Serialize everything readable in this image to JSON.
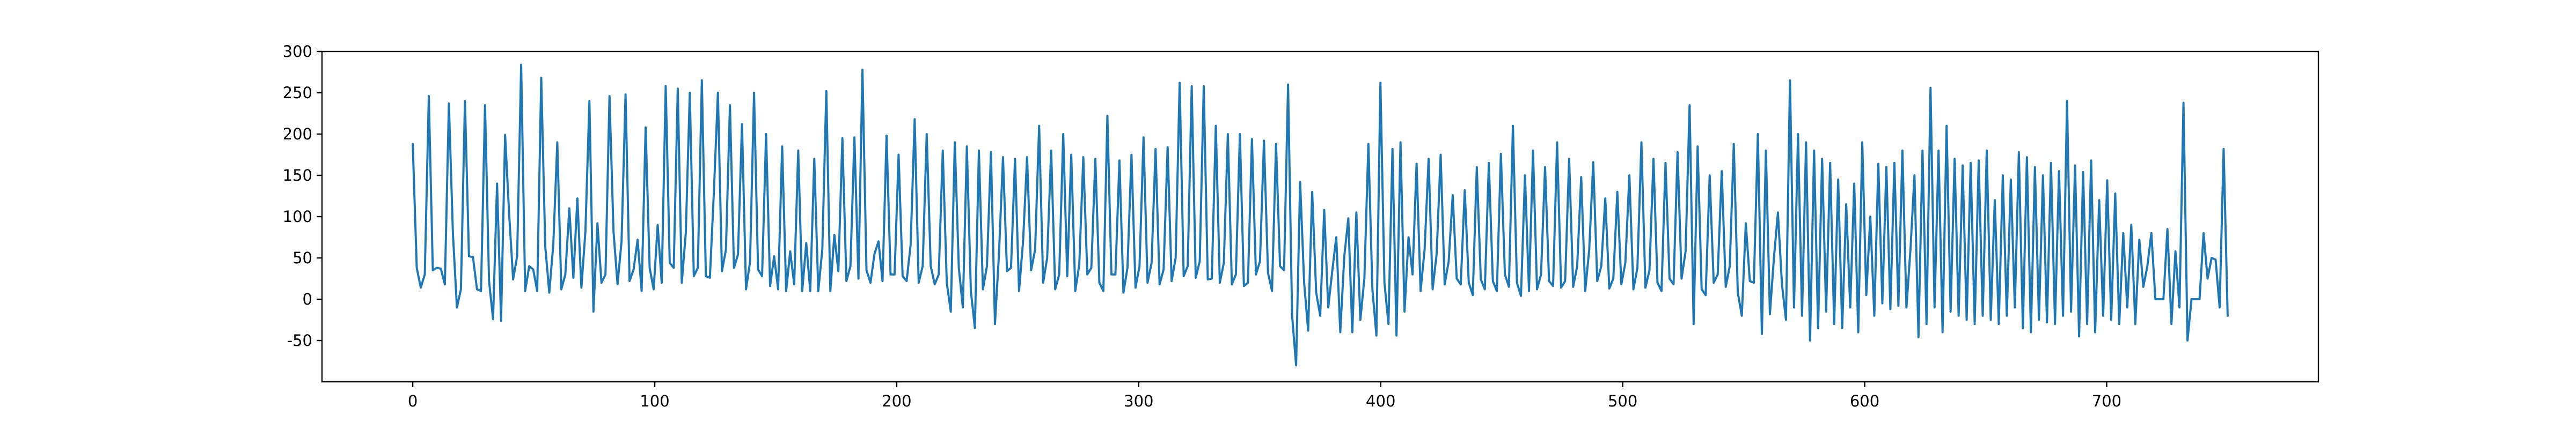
{
  "chart_data": {
    "type": "line",
    "title": "",
    "xlabel": "",
    "ylabel": "",
    "xlim": [
      -37.5,
      787.5
    ],
    "ylim": [
      -100,
      300
    ],
    "xticks": [
      0,
      100,
      200,
      300,
      400,
      500,
      600,
      700
    ],
    "yticks": [
      -50,
      0,
      50,
      100,
      150,
      200,
      250,
      300
    ],
    "grid": false,
    "legend": "none",
    "colors": {
      "line": "#1f77b4",
      "axes": "#000000",
      "background": "#ffffff"
    },
    "series": [
      {
        "values": [
          188,
          38,
          14,
          30,
          246,
          35,
          38,
          37,
          18,
          237,
          80,
          -10,
          12,
          240,
          52,
          51,
          12,
          10,
          235,
          22,
          -24,
          140,
          -26,
          199,
          104,
          24,
          52,
          284,
          10,
          40,
          36,
          10,
          268,
          64,
          8,
          66,
          190,
          12,
          30,
          110,
          26,
          122,
          14,
          82,
          240,
          -15,
          92,
          20,
          30,
          246,
          82,
          18,
          70,
          248,
          22,
          36,
          72,
          10,
          208,
          38,
          12,
          90,
          20,
          258,
          44,
          38,
          255,
          20,
          80,
          250,
          28,
          38,
          265,
          28,
          26,
          130,
          250,
          34,
          60,
          235,
          38,
          54,
          212,
          12,
          45,
          250,
          36,
          28,
          200,
          16,
          52,
          12,
          185,
          10,
          58,
          18,
          180,
          10,
          68,
          10,
          170,
          10,
          60,
          252,
          10,
          78,
          34,
          195,
          22,
          40,
          196,
          25,
          278,
          35,
          20,
          55,
          70,
          22,
          198,
          30,
          30,
          175,
          28,
          22,
          66,
          218,
          20,
          40,
          200,
          40,
          18,
          30,
          180,
          20,
          -15,
          190,
          38,
          -10,
          185,
          10,
          -35,
          180,
          12,
          40,
          178,
          -30,
          55,
          172,
          34,
          38,
          170,
          10,
          70,
          172,
          35,
          60,
          210,
          20,
          50,
          180,
          12,
          30,
          200,
          28,
          175,
          10,
          42,
          172,
          30,
          38,
          170,
          20,
          10,
          222,
          30,
          30,
          168,
          8,
          38,
          175,
          14,
          40,
          196,
          20,
          44,
          182,
          18,
          36,
          184,
          22,
          50,
          262,
          28,
          40,
          258,
          26,
          46,
          258,
          24,
          25,
          210,
          20,
          44,
          200,
          18,
          30,
          200,
          16,
          20,
          194,
          30,
          46,
          192,
          32,
          10,
          188,
          40,
          35,
          260,
          -20,
          -80,
          142,
          20,
          -38,
          130,
          8,
          -20,
          108,
          -10,
          34,
          75,
          -40,
          52,
          98,
          -40,
          105,
          -25,
          25,
          188,
          12,
          -44,
          262,
          20,
          -30,
          182,
          -44,
          190,
          -15,
          75,
          30,
          164,
          10,
          60,
          170,
          12,
          55,
          175,
          18,
          46,
          126,
          25,
          18,
          132,
          20,
          5,
          160,
          24,
          12,
          165,
          22,
          10,
          176,
          30,
          15,
          210,
          20,
          4,
          150,
          10,
          180,
          12,
          30,
          160,
          22,
          16,
          190,
          14,
          22,
          170,
          15,
          40,
          148,
          10,
          60,
          166,
          22,
          40,
          122,
          13,
          25,
          130,
          18,
          44,
          150,
          12,
          38,
          190,
          14,
          35,
          170,
          20,
          10,
          165,
          25,
          18,
          178,
          25,
          58,
          235,
          -30,
          185,
          12,
          5,
          150,
          20,
          30,
          155,
          15,
          40,
          188,
          8,
          -20,
          92,
          22,
          20,
          200,
          -42,
          180,
          -18,
          50,
          105,
          18,
          -25,
          265,
          -10,
          200,
          -20,
          190,
          -50,
          180,
          -35,
          170,
          -15,
          165,
          -30,
          145,
          -35,
          115,
          -10,
          140,
          -40,
          190,
          5,
          100,
          -20,
          164,
          -5,
          160,
          -12,
          165,
          -8,
          180,
          -10,
          60,
          150,
          -46,
          180,
          -30,
          256,
          -10,
          180,
          -40,
          210,
          -15,
          170,
          -20,
          162,
          -25,
          165,
          -30,
          168,
          -20,
          180,
          -25,
          120,
          -30,
          150,
          -20,
          145,
          -10,
          178,
          -35,
          172,
          -40,
          160,
          -25,
          150,
          -28,
          165,
          -30,
          155,
          -20,
          240,
          -15,
          162,
          -45,
          154,
          -30,
          168,
          -40,
          120,
          -20,
          144,
          -25,
          128,
          -30,
          80,
          -10,
          90,
          -30,
          72,
          15,
          40,
          80,
          0,
          0,
          0,
          85,
          -30,
          58,
          -10,
          238,
          -50,
          0,
          0,
          0,
          80,
          25,
          50,
          48,
          -10,
          182,
          -20
        ]
      }
    ]
  }
}
